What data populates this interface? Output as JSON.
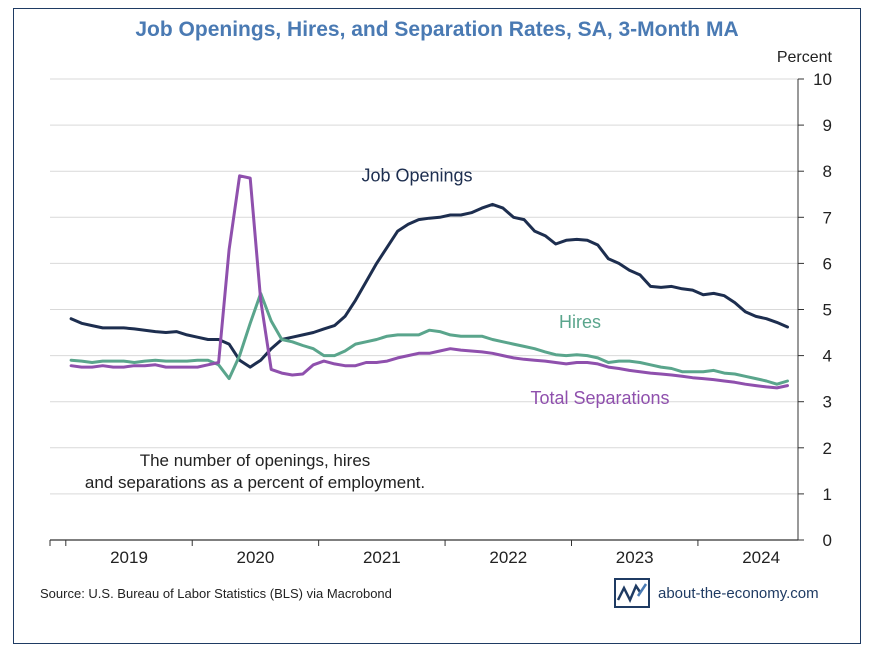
{
  "title": "Job Openings, Hires, and Separation Rates, SA, 3-Month MA",
  "source": "Source: U.S. Bureau of Labor Statistics (BLS) via Macrobond",
  "brand": {
    "text": "about-the-economy.com"
  },
  "colors": {
    "openings": "#1d2e4f",
    "hires": "#5aa58c",
    "separations": "#8f50ad",
    "title": "#4a7ab3",
    "grid": "#d9d9d9",
    "axis": "#333333"
  },
  "chart_data": {
    "type": "line",
    "title": "Job Openings, Hires, and Separation Rates, SA, 3-Month MA",
    "ylabel": "Percent",
    "ylim": [
      0,
      10
    ],
    "yticks": [
      0,
      1,
      2,
      3,
      4,
      5,
      6,
      7,
      8,
      9,
      10
    ],
    "xlabel": "",
    "x_tick_labels": [
      "2019",
      "2020",
      "2021",
      "2022",
      "2023",
      "2024"
    ],
    "grid": true,
    "annotation": "The number of openings, hires and separations as a percent of employment.",
    "x": [
      "2019-01",
      "2019-02",
      "2019-03",
      "2019-04",
      "2019-05",
      "2019-06",
      "2019-07",
      "2019-08",
      "2019-09",
      "2019-10",
      "2019-11",
      "2019-12",
      "2020-01",
      "2020-02",
      "2020-03",
      "2020-04",
      "2020-05",
      "2020-06",
      "2020-07",
      "2020-08",
      "2020-09",
      "2020-10",
      "2020-11",
      "2020-12",
      "2021-01",
      "2021-02",
      "2021-03",
      "2021-04",
      "2021-05",
      "2021-06",
      "2021-07",
      "2021-08",
      "2021-09",
      "2021-10",
      "2021-11",
      "2021-12",
      "2022-01",
      "2022-02",
      "2022-03",
      "2022-04",
      "2022-05",
      "2022-06",
      "2022-07",
      "2022-08",
      "2022-09",
      "2022-10",
      "2022-11",
      "2022-12",
      "2023-01",
      "2023-02",
      "2023-03",
      "2023-04",
      "2023-05",
      "2023-06",
      "2023-07",
      "2023-08",
      "2023-09",
      "2023-10",
      "2023-11",
      "2023-12",
      "2024-01",
      "2024-02",
      "2024-03",
      "2024-04",
      "2024-05",
      "2024-06",
      "2024-07",
      "2024-08",
      "2024-09"
    ],
    "series": [
      {
        "name": "Job Openings",
        "label_position": "upper-middle",
        "values": [
          4.8,
          4.7,
          4.65,
          4.6,
          4.6,
          4.6,
          4.58,
          4.55,
          4.52,
          4.5,
          4.52,
          4.45,
          4.4,
          4.35,
          4.35,
          4.25,
          3.9,
          3.75,
          3.9,
          4.15,
          4.35,
          4.4,
          4.45,
          4.5,
          4.58,
          4.65,
          4.85,
          5.2,
          5.6,
          6.0,
          6.35,
          6.7,
          6.85,
          6.95,
          6.98,
          7.0,
          7.05,
          7.05,
          7.1,
          7.2,
          7.28,
          7.2,
          7.0,
          6.95,
          6.7,
          6.6,
          6.42,
          6.5,
          6.52,
          6.5,
          6.4,
          6.1,
          6.0,
          5.85,
          5.75,
          5.5,
          5.48,
          5.5,
          5.45,
          5.42,
          5.32,
          5.35,
          5.3,
          5.15,
          4.95,
          4.85,
          4.8,
          4.72,
          4.62
        ]
      },
      {
        "name": "Hires",
        "label_position": "right-middle",
        "values": [
          3.9,
          3.88,
          3.85,
          3.88,
          3.88,
          3.88,
          3.85,
          3.88,
          3.9,
          3.88,
          3.88,
          3.88,
          3.9,
          3.9,
          3.8,
          3.5,
          4.0,
          4.7,
          5.35,
          4.75,
          4.35,
          4.3,
          4.22,
          4.15,
          4.0,
          4.0,
          4.1,
          4.25,
          4.3,
          4.35,
          4.42,
          4.45,
          4.45,
          4.45,
          4.55,
          4.52,
          4.45,
          4.42,
          4.42,
          4.42,
          4.35,
          4.3,
          4.25,
          4.2,
          4.15,
          4.08,
          4.02,
          4.0,
          4.02,
          4.0,
          3.95,
          3.85,
          3.88,
          3.88,
          3.85,
          3.8,
          3.75,
          3.72,
          3.65,
          3.65,
          3.65,
          3.68,
          3.62,
          3.6,
          3.55,
          3.5,
          3.45,
          3.38,
          3.45
        ]
      },
      {
        "name": "Total Separations",
        "label_position": "lower-right",
        "values": [
          3.78,
          3.75,
          3.75,
          3.78,
          3.75,
          3.75,
          3.78,
          3.78,
          3.8,
          3.75,
          3.75,
          3.75,
          3.75,
          3.8,
          3.85,
          6.3,
          7.9,
          7.85,
          5.2,
          3.7,
          3.62,
          3.58,
          3.6,
          3.8,
          3.88,
          3.82,
          3.78,
          3.78,
          3.85,
          3.85,
          3.88,
          3.95,
          4.0,
          4.05,
          4.05,
          4.1,
          4.15,
          4.12,
          4.1,
          4.08,
          4.05,
          4.0,
          3.95,
          3.92,
          3.9,
          3.88,
          3.85,
          3.82,
          3.85,
          3.85,
          3.82,
          3.75,
          3.72,
          3.68,
          3.65,
          3.62,
          3.6,
          3.58,
          3.55,
          3.52,
          3.5,
          3.48,
          3.45,
          3.42,
          3.38,
          3.35,
          3.32,
          3.3,
          3.35
        ]
      }
    ]
  }
}
